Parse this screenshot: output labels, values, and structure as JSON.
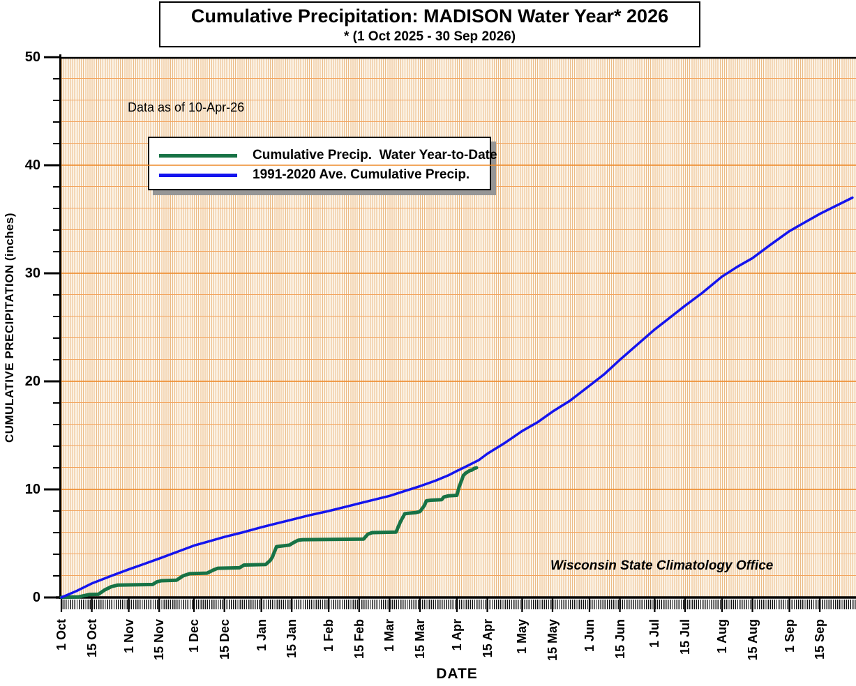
{
  "title": "Cumulative Precipitation: MADISON Water Year* 2026",
  "subtitle": "* (1 Oct 2025 - 30 Sep 2026)",
  "annotation": "Data as of 10-Apr-26",
  "watermark": "Wisconsin State Climatology Office",
  "colors": {
    "current": "#177245",
    "average": "#1414EE",
    "plot_bg": "#FCF5EA",
    "grid_minor": "#F3A55F",
    "grid_major": "#EE8A28",
    "stripe": "#EBBB86",
    "axis": "#000000",
    "legend_shadow": "#969696"
  },
  "chart_data": {
    "type": "line",
    "title": "Cumulative Precipitation: MADISON Water Year* 2026",
    "subtitle": "* (1 Oct 2025 - 30 Sep 2026)",
    "xlabel": "DATE",
    "ylabel": "CUMULATIVE PRECIPITATION (inches)",
    "ylim": [
      0,
      50
    ],
    "y_major_ticks": [
      0,
      10,
      20,
      30,
      40,
      50
    ],
    "y_minor_step": 2,
    "x_range_days": 365,
    "grid": true,
    "legend_position": "upper-left",
    "x_ticks": [
      {
        "label": "1 Oct",
        "day": 0
      },
      {
        "label": "15 Oct",
        "day": 14
      },
      {
        "label": "1 Nov",
        "day": 31
      },
      {
        "label": "15 Nov",
        "day": 45
      },
      {
        "label": "1 Dec",
        "day": 61
      },
      {
        "label": "15 Dec",
        "day": 75
      },
      {
        "label": "1 Jan",
        "day": 92
      },
      {
        "label": "15 Jan",
        "day": 106
      },
      {
        "label": "1 Feb",
        "day": 123
      },
      {
        "label": "15 Feb",
        "day": 137
      },
      {
        "label": "1 Mar",
        "day": 151
      },
      {
        "label": "15 Mar",
        "day": 165
      },
      {
        "label": "1 Apr",
        "day": 182
      },
      {
        "label": "15 Apr",
        "day": 196
      },
      {
        "label": "1 May",
        "day": 212
      },
      {
        "label": "15 May",
        "day": 226
      },
      {
        "label": "1 Jun",
        "day": 243
      },
      {
        "label": "15 Jun",
        "day": 257
      },
      {
        "label": "1 Jul",
        "day": 273
      },
      {
        "label": "15 Jul",
        "day": 287
      },
      {
        "label": "1 Aug",
        "day": 304
      },
      {
        "label": "15 Aug",
        "day": 318
      },
      {
        "label": "1 Sep",
        "day": 335
      },
      {
        "label": "15 Sep",
        "day": 349
      }
    ],
    "series": [
      {
        "name": "Cumulative Precip.  Water Year-to-Date",
        "color_key": "current",
        "points": [
          [
            0,
            0.02
          ],
          [
            8,
            0.05
          ],
          [
            10,
            0.15
          ],
          [
            13,
            0.28
          ],
          [
            17,
            0.3
          ],
          [
            20,
            0.7
          ],
          [
            23,
            1.0
          ],
          [
            26,
            1.15
          ],
          [
            42,
            1.2
          ],
          [
            44,
            1.45
          ],
          [
            46,
            1.55
          ],
          [
            53,
            1.6
          ],
          [
            56,
            2.0
          ],
          [
            59,
            2.2
          ],
          [
            67,
            2.25
          ],
          [
            70,
            2.55
          ],
          [
            72,
            2.7
          ],
          [
            82,
            2.75
          ],
          [
            84,
            3.0
          ],
          [
            94,
            3.05
          ],
          [
            96,
            3.4
          ],
          [
            97,
            3.7
          ],
          [
            99,
            4.7
          ],
          [
            105,
            4.85
          ],
          [
            107,
            5.1
          ],
          [
            109,
            5.3
          ],
          [
            111,
            5.35
          ],
          [
            139,
            5.4
          ],
          [
            141,
            5.85
          ],
          [
            143,
            6.0
          ],
          [
            154,
            6.05
          ],
          [
            156,
            7.0
          ],
          [
            158,
            7.75
          ],
          [
            160,
            7.8
          ],
          [
            163,
            7.85
          ],
          [
            165,
            7.95
          ],
          [
            167,
            8.5
          ],
          [
            168,
            8.95
          ],
          [
            170,
            9.0
          ],
          [
            175,
            9.05
          ],
          [
            176,
            9.3
          ],
          [
            178,
            9.4
          ],
          [
            182,
            9.45
          ],
          [
            183,
            10.2
          ],
          [
            185,
            11.3
          ],
          [
            186,
            11.5
          ],
          [
            188,
            11.75
          ],
          [
            189,
            11.8
          ],
          [
            190,
            11.95
          ],
          [
            191,
            12.0
          ]
        ]
      },
      {
        "name": "1991-2020 Ave. Cumulative Precip.",
        "color_key": "average",
        "points": [
          [
            0,
            0
          ],
          [
            7,
            0.6
          ],
          [
            14,
            1.3
          ],
          [
            23,
            2.0
          ],
          [
            31,
            2.6
          ],
          [
            38,
            3.1
          ],
          [
            45,
            3.6
          ],
          [
            53,
            4.2
          ],
          [
            61,
            4.8
          ],
          [
            68,
            5.2
          ],
          [
            75,
            5.6
          ],
          [
            83,
            6.0
          ],
          [
            92,
            6.5
          ],
          [
            99,
            6.85
          ],
          [
            106,
            7.2
          ],
          [
            114,
            7.6
          ],
          [
            123,
            8.0
          ],
          [
            130,
            8.35
          ],
          [
            137,
            8.7
          ],
          [
            144,
            9.05
          ],
          [
            151,
            9.4
          ],
          [
            158,
            9.85
          ],
          [
            165,
            10.3
          ],
          [
            172,
            10.8
          ],
          [
            178,
            11.3
          ],
          [
            182,
            11.7
          ],
          [
            186,
            12.1
          ],
          [
            189,
            12.4
          ],
          [
            192,
            12.7
          ],
          [
            196,
            13.3
          ],
          [
            204,
            14.3
          ],
          [
            212,
            15.4
          ],
          [
            219,
            16.2
          ],
          [
            226,
            17.2
          ],
          [
            234,
            18.2
          ],
          [
            243,
            19.6
          ],
          [
            250,
            20.7
          ],
          [
            257,
            22.0
          ],
          [
            265,
            23.4
          ],
          [
            273,
            24.8
          ],
          [
            280,
            25.9
          ],
          [
            287,
            27.0
          ],
          [
            295,
            28.2
          ],
          [
            304,
            29.7
          ],
          [
            311,
            30.6
          ],
          [
            318,
            31.4
          ],
          [
            326,
            32.6
          ],
          [
            335,
            33.9
          ],
          [
            342,
            34.7
          ],
          [
            349,
            35.5
          ],
          [
            356,
            36.2
          ],
          [
            364,
            37.0
          ]
        ]
      }
    ]
  }
}
